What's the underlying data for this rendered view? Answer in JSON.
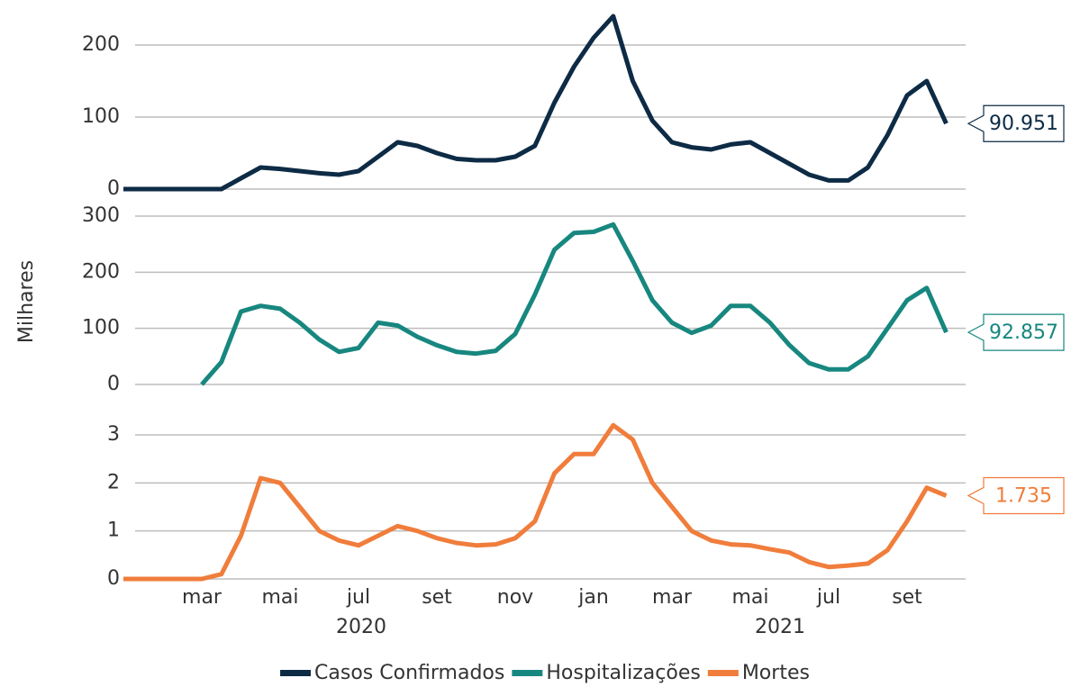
{
  "chart_data": {
    "type": "line",
    "y_label": "Milhares",
    "categories": [
      null,
      null,
      null,
      null,
      "mar",
      null,
      null,
      null,
      "mai",
      null,
      null,
      null,
      "jul",
      null,
      null,
      null,
      "set",
      null,
      null,
      null,
      "nov",
      null,
      null,
      null,
      "jan",
      null,
      null,
      null,
      "mar",
      null,
      null,
      null,
      "mai",
      null,
      null,
      null,
      "jul",
      null,
      null,
      null,
      "set",
      null,
      null
    ],
    "years": [
      "2020",
      "2021"
    ],
    "panels": [
      {
        "ylim": [
          0,
          250
        ],
        "yticks": [
          0,
          100,
          200
        ]
      },
      {
        "ylim": [
          0,
          300
        ],
        "yticks": [
          0,
          100,
          200,
          300
        ]
      },
      {
        "ylim": [
          0,
          3.3
        ],
        "yticks": [
          0,
          1,
          2,
          3
        ]
      }
    ],
    "series": [
      {
        "name": "Casos Confirmados",
        "color": "#0d2b45",
        "panel": 0,
        "end_label": "90.951",
        "values": [
          0,
          0,
          0,
          0,
          0,
          0,
          15,
          30,
          28,
          25,
          22,
          20,
          25,
          45,
          65,
          60,
          50,
          42,
          40,
          40,
          45,
          60,
          120,
          170,
          210,
          240,
          150,
          95,
          65,
          58,
          55,
          62,
          65,
          50,
          35,
          20,
          12,
          12,
          30,
          75,
          130,
          150,
          90.951
        ]
      },
      {
        "name": "Hospitalizações",
        "color": "#17877f",
        "panel": 1,
        "end_label": "92.857",
        "values": [
          null,
          null,
          null,
          null,
          0,
          40,
          130,
          140,
          135,
          110,
          80,
          58,
          65,
          110,
          105,
          85,
          70,
          58,
          55,
          60,
          90,
          160,
          240,
          270,
          272,
          285,
          220,
          150,
          110,
          92,
          105,
          140,
          140,
          110,
          70,
          38,
          27,
          27,
          50,
          100,
          150,
          172,
          92.857
        ]
      },
      {
        "name": "Mortes",
        "color": "#f07d3c",
        "panel": 2,
        "end_label": "1.735",
        "values": [
          0,
          0,
          0,
          0,
          0,
          0.1,
          0.9,
          2.1,
          2.0,
          1.5,
          1.0,
          0.8,
          0.7,
          0.9,
          1.1,
          1.0,
          0.85,
          0.75,
          0.7,
          0.72,
          0.85,
          1.2,
          2.2,
          2.6,
          2.6,
          3.2,
          2.9,
          2.0,
          1.5,
          1.0,
          0.8,
          0.72,
          0.7,
          0.62,
          0.55,
          0.35,
          0.25,
          0.28,
          0.32,
          0.6,
          1.2,
          1.9,
          1.735
        ]
      }
    ]
  }
}
